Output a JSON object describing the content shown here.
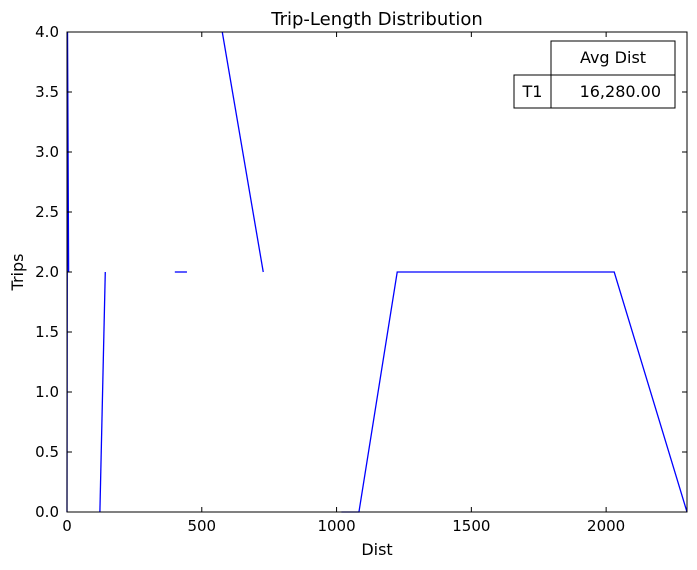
{
  "chart_data": {
    "type": "line",
    "title": "Trip-Length Distribution",
    "xlabel": "Dist",
    "ylabel": "Trips",
    "xlim": [
      0,
      2300
    ],
    "ylim": [
      0,
      4
    ],
    "x_ticks": [
      0,
      500,
      1000,
      1500,
      2000
    ],
    "y_ticks": [
      "0.0",
      "0.5",
      "1.0",
      "1.5",
      "2.0",
      "2.5",
      "3.0",
      "3.5",
      "4.0"
    ],
    "grid": false,
    "line_color": "#0000ff",
    "segments": [
      [
        [
          0,
          0
        ],
        [
          2,
          4
        ],
        [
          6,
          2
        ]
      ],
      [
        [
          122,
          0
        ],
        [
          142,
          2
        ]
      ],
      [
        [
          400,
          2
        ],
        [
          445,
          2
        ]
      ],
      [
        [
          576,
          4
        ],
        [
          728,
          2
        ]
      ],
      [
        [
          1018,
          0
        ],
        [
          1083,
          0
        ],
        [
          1225,
          2
        ],
        [
          2030,
          2
        ],
        [
          2300,
          0
        ]
      ]
    ],
    "table": {
      "column_header": "Avg Dist",
      "rows": [
        {
          "label": "T1",
          "value": "16,280.00",
          "label_color": "#0000ff"
        }
      ]
    }
  }
}
